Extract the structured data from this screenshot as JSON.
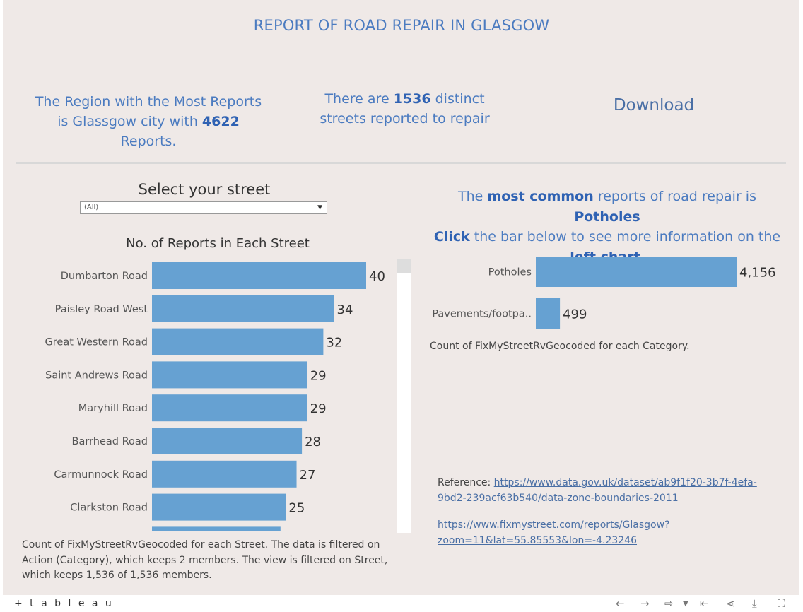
{
  "title": "REPORT OF ROAD REPAIR IN GLASGOW",
  "kpi_region": {
    "pre": "The Region with the Most Reports is Glassgow city with ",
    "count": "4622",
    "post": " Reports."
  },
  "kpi_streets": {
    "pre": "There are ",
    "count": "1536",
    "post": " distinct streets reported to repair"
  },
  "download_label": "Download",
  "street_filter": {
    "label": "Select your street",
    "value": "(All)"
  },
  "street_chart_title": "No. of Reports in Each Street",
  "street_footnote": "Count of FixMyStreetRvGeocoded for each Street. The data is filtered on Action (Category), which keeps 2 members. The view is filtered on Street, which keeps 1,536 of 1,536 members.",
  "right_text": {
    "line1_pre": "The ",
    "line1_bold1": "most common",
    "line1_mid": " reports of road repair is ",
    "line1_bold2": "Potholes",
    "line2_bold": "Click",
    "line2_rest": " the bar below to see more information on the",
    "line3_bold": "left chart",
    "line3_rest": "."
  },
  "category_note": "Count of FixMyStreetRvGeocoded for each Category.",
  "reference": {
    "label": "Reference: ",
    "link1": "https://www.data.gov.uk/dataset/ab9f1f20-3b7f-4efa-9bd2-239acf63b540/data-zone-boundaries-2011",
    "link2": "https://www.fixmystreet.com/reports/Glasgow?zoom=11&lat=55.85553&lon=-4.23246"
  },
  "footer": {
    "logo": "+ t a b l e a u"
  },
  "colors": {
    "bar": "#66a1d2",
    "accent": "#4b7bc0",
    "background": "#efe9e7"
  },
  "chart_data": [
    {
      "type": "bar",
      "orientation": "horizontal",
      "title": "No. of Reports in Each Street",
      "categories": [
        "Dumbarton Road",
        "Paisley Road West",
        "Great Western Road",
        "Saint Andrews Road",
        "Maryhill Road",
        "Barrhead Road",
        "Carmunnock Road",
        "Clarkston Road"
      ],
      "values": [
        40,
        34,
        32,
        29,
        29,
        28,
        27,
        25
      ],
      "data_labels": [
        "40",
        "34",
        "32",
        "29",
        "29",
        "28",
        "27",
        "25"
      ],
      "partial_next_bar": 24,
      "xlim": [
        0,
        40
      ]
    },
    {
      "type": "bar",
      "orientation": "horizontal",
      "categories": [
        "Potholes",
        "Pavements/footpa.."
      ],
      "values": [
        4156,
        499
      ],
      "data_labels": [
        "4,156",
        "499"
      ],
      "xlim": [
        0,
        4156
      ]
    }
  ]
}
